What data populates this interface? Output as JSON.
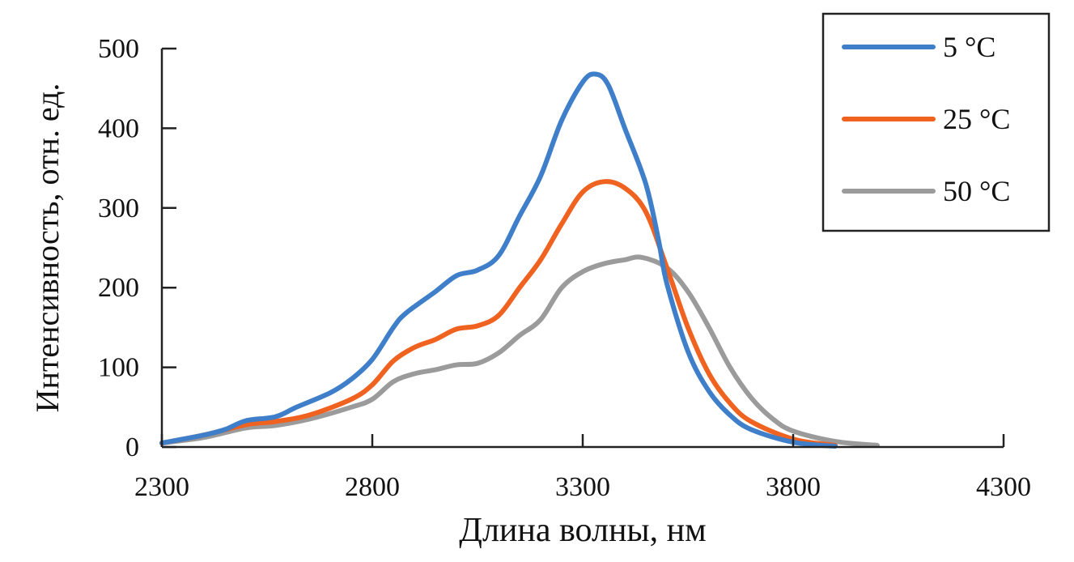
{
  "chart_data": {
    "type": "line",
    "title": "",
    "xlabel": "Длина волны, нм",
    "ylabel": "Интенсивность, отн. ед.",
    "xlim": [
      2300,
      4300
    ],
    "ylim": [
      0,
      500
    ],
    "xticks": [
      2300,
      2800,
      3300,
      3800,
      4300
    ],
    "yticks": [
      0,
      100,
      200,
      300,
      400,
      500
    ],
    "grid": false,
    "legend_position": "top-right",
    "series": [
      {
        "name": "5 °C",
        "color": "#3f7fc9",
        "x": [
          2300,
          2400,
          2450,
          2500,
          2570,
          2620,
          2700,
          2750,
          2800,
          2850,
          2880,
          2950,
          3000,
          3050,
          3100,
          3150,
          3200,
          3250,
          3300,
          3330,
          3360,
          3400,
          3450,
          3480,
          3500,
          3550,
          3600,
          3650,
          3700,
          3800,
          3900
        ],
        "y": [
          5,
          15,
          22,
          33,
          38,
          50,
          68,
          85,
          110,
          150,
          168,
          195,
          215,
          222,
          240,
          290,
          340,
          410,
          458,
          468,
          455,
          400,
          330,
          260,
          205,
          120,
          70,
          40,
          22,
          6,
          1
        ]
      },
      {
        "name": "25 °C",
        "color": "#f0621f",
        "x": [
          2300,
          2400,
          2500,
          2570,
          2650,
          2750,
          2800,
          2850,
          2900,
          2950,
          3000,
          3050,
          3100,
          3150,
          3200,
          3250,
          3300,
          3350,
          3400,
          3450,
          3500,
          3550,
          3600,
          3650,
          3700,
          3800,
          3900
        ],
        "y": [
          5,
          15,
          28,
          32,
          40,
          60,
          78,
          108,
          125,
          135,
          148,
          152,
          165,
          200,
          235,
          280,
          320,
          333,
          325,
          295,
          225,
          150,
          92,
          55,
          32,
          10,
          2
        ]
      },
      {
        "name": "50 °C",
        "color": "#9b9b9b",
        "x": [
          2300,
          2400,
          2500,
          2570,
          2650,
          2750,
          2800,
          2850,
          2900,
          2950,
          3000,
          3050,
          3100,
          3150,
          3200,
          3250,
          3300,
          3350,
          3400,
          3440,
          3500,
          3550,
          3600,
          3650,
          3700,
          3750,
          3800,
          3900,
          4000
        ],
        "y": [
          5,
          12,
          24,
          27,
          35,
          50,
          60,
          82,
          92,
          97,
          103,
          105,
          118,
          140,
          160,
          200,
          220,
          230,
          235,
          238,
          225,
          195,
          150,
          100,
          62,
          36,
          20,
          7,
          2
        ]
      }
    ]
  }
}
